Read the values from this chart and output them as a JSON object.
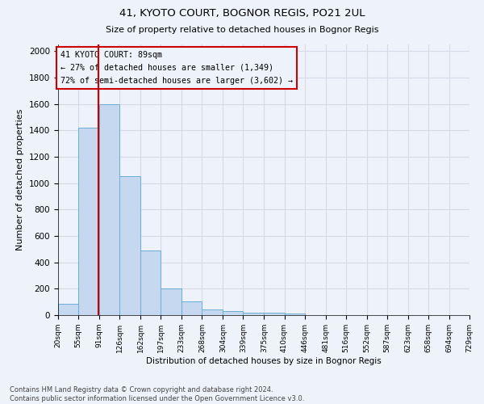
{
  "title1": "41, KYOTO COURT, BOGNOR REGIS, PO21 2UL",
  "title2": "Size of property relative to detached houses in Bognor Regis",
  "xlabel": "Distribution of detached houses by size in Bognor Regis",
  "ylabel": "Number of detached properties",
  "bar_labels": [
    "20sqm",
    "55sqm",
    "91sqm",
    "126sqm",
    "162sqm",
    "197sqm",
    "233sqm",
    "268sqm",
    "304sqm",
    "339sqm",
    "375sqm",
    "410sqm",
    "446sqm",
    "481sqm",
    "516sqm",
    "552sqm",
    "587sqm",
    "623sqm",
    "658sqm",
    "694sqm",
    "729sqm"
  ],
  "bar_values": [
    85,
    1420,
    1600,
    1050,
    490,
    205,
    105,
    40,
    28,
    20,
    18,
    15,
    0,
    0,
    0,
    0,
    0,
    0,
    0,
    0,
    0
  ],
  "bar_color": "#c5d8f0",
  "bar_edge_color": "#6baed6",
  "grid_color": "#d8d8e8",
  "annotation_box_color": "#cc0000",
  "annotation_text": "41 KYOTO COURT: 89sqm\n← 27% of detached houses are smaller (1,349)\n72% of semi-detached houses are larger (3,602) →",
  "vline_x": 89,
  "vline_color": "#cc0000",
  "ylim": [
    0,
    2050
  ],
  "yticks": [
    0,
    200,
    400,
    600,
    800,
    1000,
    1200,
    1400,
    1600,
    1800,
    2000
  ],
  "bin_edges": [
    20,
    55,
    91,
    126,
    162,
    197,
    233,
    268,
    304,
    339,
    375,
    410,
    446,
    481,
    516,
    552,
    587,
    623,
    658,
    694,
    729
  ],
  "footnote": "Contains HM Land Registry data © Crown copyright and database right 2024.\nContains public sector information licensed under the Open Government Licence v3.0.",
  "bg_color": "#eef2fb"
}
